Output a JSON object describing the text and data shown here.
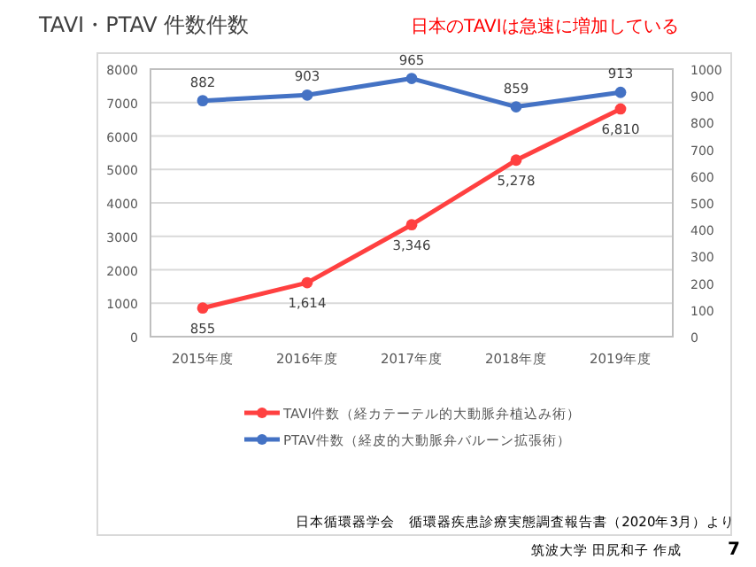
{
  "chart_data": {
    "type": "line",
    "title": "TAVI・PTAV 件数件数",
    "subtitle": "日本のTAVIは急速に増加している",
    "categories": [
      "2015年度",
      "2016年度",
      "2017年度",
      "2018年度",
      "2019年度"
    ],
    "series": [
      {
        "name": "TAVI件数（経カテーテル的大動脈弁植込み術）",
        "color": "#ff4040",
        "values": [
          855,
          1614,
          3346,
          5278,
          6810
        ],
        "value_labels": [
          "855",
          "1,614",
          "3,346",
          "5,278",
          "6,810"
        ]
      },
      {
        "name": "PTAV件数（経皮的大動脈弁バルーン拡張術）",
        "color": "#4472c4",
        "axis": "y2",
        "values": [
          882,
          903,
          965,
          859,
          913
        ],
        "value_labels": [
          "882",
          "903",
          "965",
          "859",
          "913"
        ]
      }
    ],
    "ylim": [
      0,
      8000
    ],
    "yticks": [
      0,
      1000,
      2000,
      3000,
      4000,
      5000,
      6000,
      7000,
      8000
    ],
    "y2lim": [
      0,
      1000
    ],
    "y2ticks": [
      0,
      100,
      200,
      300,
      400,
      500,
      600,
      700,
      800,
      900,
      1000
    ],
    "grid": "y",
    "legend": "bottom",
    "marker": "circle",
    "annotations": [
      "日本循環器学会　循環器疾患診療実態調査報告書（2020年3月）より",
      "筑波大学 田尻和子 作成",
      "7"
    ]
  }
}
